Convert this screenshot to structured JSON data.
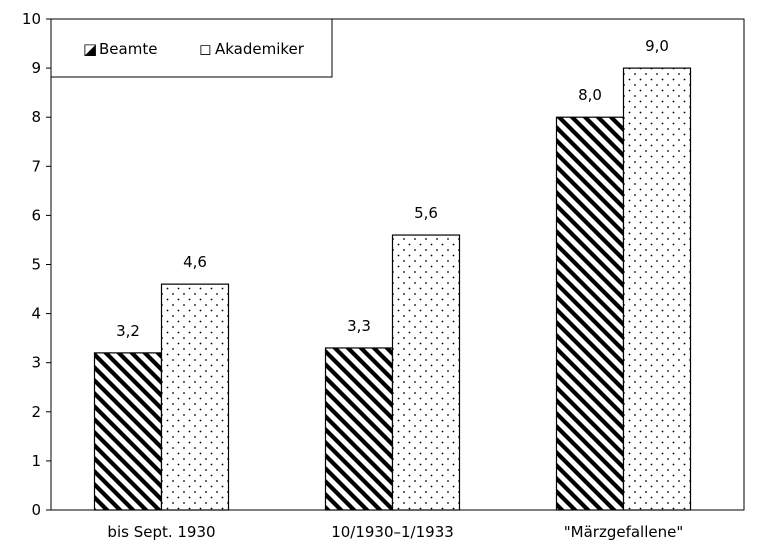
{
  "chart_data": {
    "type": "bar",
    "categories": [
      "bis Sept. 1930",
      "10/1930–1/1933",
      "\"Märzgefallene\""
    ],
    "series": [
      {
        "name": "Beamte",
        "values": [
          3.2,
          3.3,
          8.0
        ],
        "labels": [
          "3,2",
          "3,3",
          "8,0"
        ],
        "pattern": "diagonal-hatch"
      },
      {
        "name": "Akademiker",
        "values": [
          4.6,
          5.6,
          9.0
        ],
        "labels": [
          "4,6",
          "5,6",
          "9,0"
        ],
        "pattern": "dots"
      }
    ],
    "ylim": [
      0,
      10
    ],
    "yticks": [
      "0",
      "1",
      "2",
      "3",
      "4",
      "5",
      "6",
      "7",
      "8",
      "9",
      "10"
    ],
    "grid": false,
    "legend_position": "top-left",
    "legend_markers": [
      "◪",
      "◻"
    ],
    "title": "",
    "xlabel": "",
    "ylabel": ""
  }
}
